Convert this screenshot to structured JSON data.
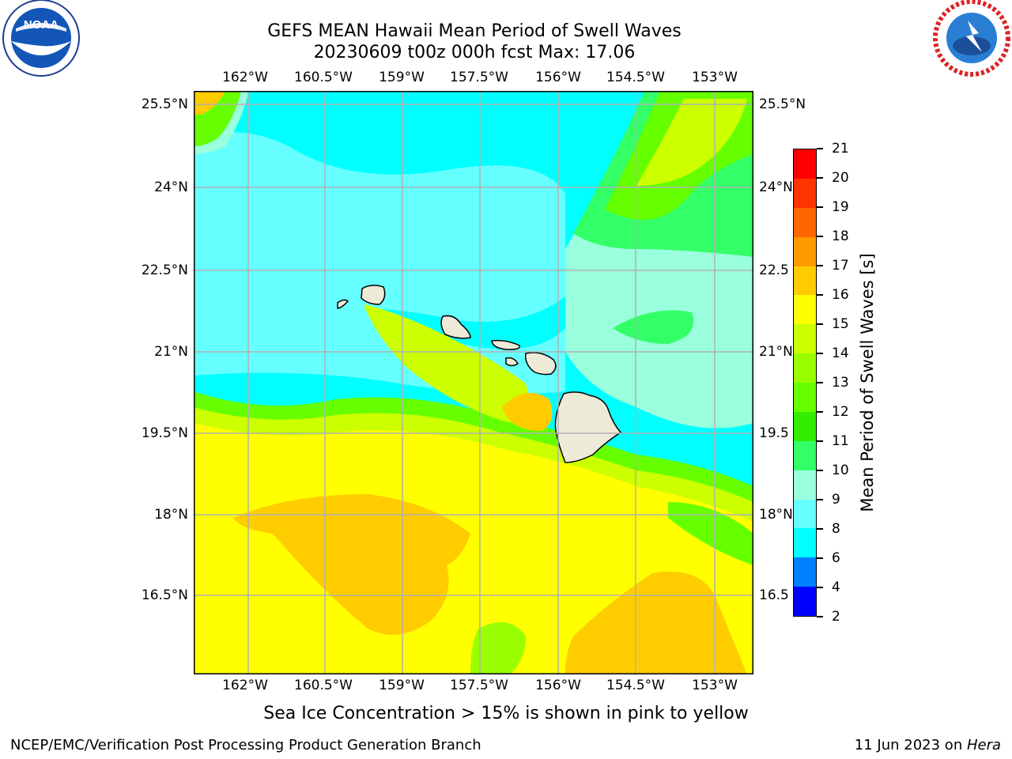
{
  "header": {
    "title_line1": "GEFS MEAN Hawaii Mean Period of Swell Waves",
    "title_line2": "20230609 t00z 000h fcst   Max: 17.06"
  },
  "logos": {
    "left": {
      "text": "NOAA",
      "icon": "noaa-logo"
    },
    "right": {
      "icon": "nws-logo"
    }
  },
  "map": {
    "lon_ticks": [
      "162°W",
      "160.5°W",
      "159°W",
      "157.5°W",
      "156°W",
      "154.5°W",
      "153°W"
    ],
    "lat_ticks": [
      "25.5°N",
      "24°N",
      "22.5°N",
      "21°N",
      "19.5°N",
      "18°N",
      "16.5°N"
    ],
    "lat_ticks_right": [
      "25.5°N",
      "24°N",
      "22.5",
      "21°N",
      "19.5",
      "18°N",
      "16.5"
    ]
  },
  "colorbar": {
    "label": "Mean Period of Swell Waves [s]",
    "ticks": [
      "21",
      "20",
      "19",
      "18",
      "17",
      "16",
      "15",
      "14",
      "13",
      "12",
      "11",
      "10",
      "9",
      "8",
      "6",
      "4",
      "2"
    ],
    "colors": [
      "#ff0000",
      "#ff3300",
      "#ff6600",
      "#ff9900",
      "#ffcc00",
      "#ffff00",
      "#ccff00",
      "#99ff00",
      "#66ff00",
      "#33ee00",
      "#33ff66",
      "#99ffdd",
      "#66ffff",
      "#00ffff",
      "#0080ff",
      "#0000ff"
    ]
  },
  "caption": "Sea Ice Concentration > 15% is shown in pink to yellow",
  "footer": {
    "left": "NCEP/EMC/Verification Post Processing Product Generation Branch",
    "right_date": "11 Jun 2023 on ",
    "right_host": "Hera"
  }
}
